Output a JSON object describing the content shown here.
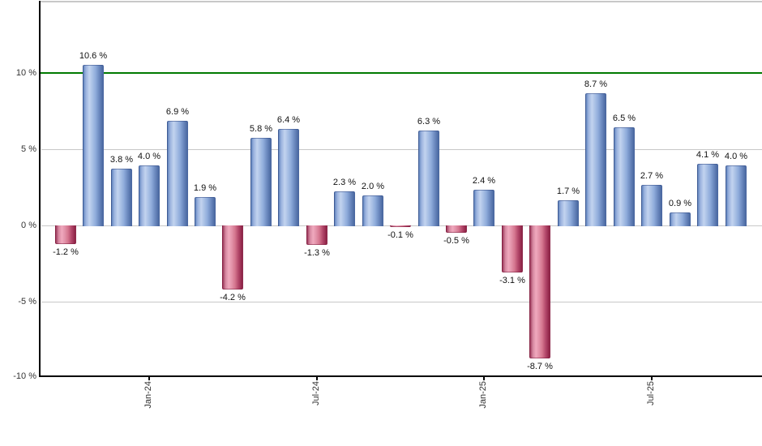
{
  "chart_data": {
    "type": "bar",
    "description": "Monthly percent returns bar chart, positive months blue, negative months red",
    "values": [
      -1.2,
      10.6,
      3.8,
      4.0,
      6.9,
      1.9,
      -4.2,
      5.8,
      6.4,
      -1.3,
      2.3,
      2.0,
      -0.1,
      6.3,
      -0.5,
      2.4,
      -3.1,
      -8.7,
      1.7,
      8.7,
      6.5,
      2.7,
      0.9,
      4.1,
      4.0
    ],
    "bar_labels": [
      "-1.2 %",
      "10.6 %",
      "3.8 %",
      "4.0 %",
      "6.9 %",
      "1.9 %",
      "-4.2 %",
      "5.8 %",
      "6.4 %",
      "-1.3 %",
      "2.3 %",
      "2.0 %",
      "-0.1 %",
      "6.3 %",
      "-0.5 %",
      "2.4 %",
      "-3.1 %",
      "-8.7 %",
      "1.7 %",
      "8.7 %",
      "6.5 %",
      "2.7 %",
      "0.9 %",
      "4.1 %",
      "4.0 %"
    ],
    "x_ticks": [
      {
        "label": "Jan-24",
        "bar_index": 3
      },
      {
        "label": "Jul-24",
        "bar_index": 9
      },
      {
        "label": "Jan-25",
        "bar_index": 15
      },
      {
        "label": "Jul-25",
        "bar_index": 21
      }
    ],
    "y_ticks": [
      {
        "label": "10 %",
        "value": 10,
        "gridline": false,
        "reference": true
      },
      {
        "label": "5 %",
        "value": 5,
        "gridline": true
      },
      {
        "label": "0 %",
        "value": 0,
        "gridline": true
      },
      {
        "label": "-5 %",
        "value": -5,
        "gridline": true
      },
      {
        "label": "-10 %",
        "value": -10,
        "gridline": false,
        "axis": true
      }
    ],
    "ylim": [
      -10,
      14.7
    ],
    "grid": true,
    "legend": "none",
    "reference_line": {
      "value": 10,
      "color": "#007A00"
    },
    "colors": {
      "positive_bar": "#8FACDB",
      "negative_bar": "#C2476B",
      "gridline": "#C8C8C8",
      "top_border": "#C8C8C8",
      "axis": "#000000",
      "reference": "#007A00",
      "bar_label_text": "#111111",
      "tick_label_text": "#333333",
      "background": "#FFFFFF"
    }
  }
}
